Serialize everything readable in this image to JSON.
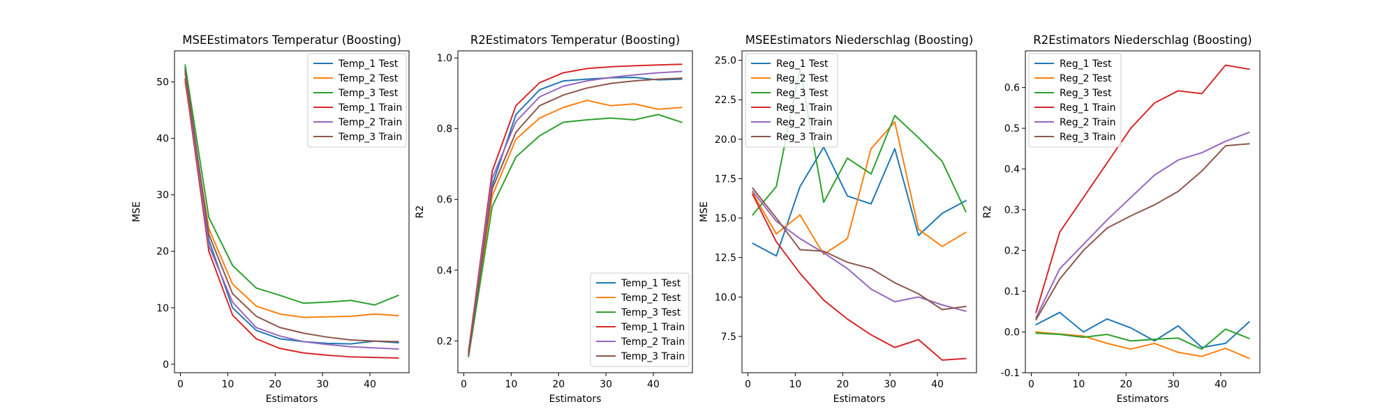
{
  "chart_data": [
    {
      "type": "line",
      "title": "MSEEstimators Temperatur (Boosting)",
      "xlabel": "Estimators",
      "ylabel": "MSE",
      "xlim": [
        -1.25,
        48.25
      ],
      "ylim": [
        -1.5,
        55.5
      ],
      "xticks": [
        0,
        10,
        20,
        30,
        40
      ],
      "yticks": [
        0,
        10,
        20,
        30,
        40,
        50
      ],
      "legend_position": "upper right",
      "x": [
        1,
        6,
        11,
        16,
        21,
        26,
        31,
        36,
        41,
        46
      ],
      "series": [
        {
          "name": "Temp_1 Test",
          "color": "#1f77b4",
          "values": [
            52.5,
            22.0,
            10.0,
            6.0,
            4.5,
            4.0,
            3.7,
            3.6,
            4.1,
            3.8
          ]
        },
        {
          "name": "Temp_2 Test",
          "color": "#ff7f0e",
          "values": [
            50.0,
            24.0,
            14.2,
            10.3,
            8.9,
            8.3,
            8.4,
            8.5,
            8.9,
            8.6
          ]
        },
        {
          "name": "Temp_3 Test",
          "color": "#2ca02c",
          "values": [
            53.0,
            26.0,
            17.5,
            13.5,
            12.2,
            10.8,
            11.0,
            11.3,
            10.5,
            12.2
          ]
        },
        {
          "name": "Temp_1 Train",
          "color": "#d62728",
          "values": [
            50.5,
            20.0,
            8.7,
            4.5,
            2.8,
            2.0,
            1.6,
            1.3,
            1.2,
            1.1
          ]
        },
        {
          "name": "Temp_2 Train",
          "color": "#9467bd",
          "values": [
            51.5,
            21.0,
            11.0,
            6.5,
            5.0,
            4.0,
            3.5,
            3.1,
            2.9,
            2.7
          ]
        },
        {
          "name": "Temp_3 Train",
          "color": "#8c564b",
          "values": [
            52.0,
            23.0,
            12.5,
            8.5,
            6.5,
            5.5,
            4.8,
            4.3,
            4.1,
            4.0
          ]
        }
      ]
    },
    {
      "type": "line",
      "title": "R2Estimators Temperatur (Boosting)",
      "xlabel": "Estimators",
      "ylabel": "R2",
      "xlim": [
        -1.25,
        48.25
      ],
      "ylim": [
        0.11,
        1.02
      ],
      "xticks": [
        0,
        10,
        20,
        30,
        40
      ],
      "yticks": [
        0.2,
        0.4,
        0.6,
        0.8,
        1.0
      ],
      "legend_position": "lower right",
      "x": [
        1,
        6,
        11,
        16,
        21,
        26,
        31,
        36,
        41,
        46
      ],
      "series": [
        {
          "name": "Temp_1 Test",
          "color": "#1f77b4",
          "values": [
            0.16,
            0.64,
            0.84,
            0.91,
            0.935,
            0.94,
            0.944,
            0.945,
            0.938,
            0.94
          ]
        },
        {
          "name": "Temp_2 Test",
          "color": "#ff7f0e",
          "values": [
            0.17,
            0.61,
            0.77,
            0.83,
            0.86,
            0.88,
            0.865,
            0.87,
            0.855,
            0.86
          ]
        },
        {
          "name": "Temp_3 Test",
          "color": "#2ca02c",
          "values": [
            0.155,
            0.58,
            0.72,
            0.78,
            0.818,
            0.825,
            0.83,
            0.825,
            0.84,
            0.818
          ]
        },
        {
          "name": "Temp_1 Train",
          "color": "#d62728",
          "values": [
            0.17,
            0.68,
            0.865,
            0.93,
            0.958,
            0.97,
            0.975,
            0.978,
            0.98,
            0.982
          ]
        },
        {
          "name": "Temp_2 Train",
          "color": "#9467bd",
          "values": [
            0.165,
            0.66,
            0.82,
            0.89,
            0.92,
            0.935,
            0.945,
            0.952,
            0.958,
            0.962
          ]
        },
        {
          "name": "Temp_3 Train",
          "color": "#8c564b",
          "values": [
            0.16,
            0.63,
            0.79,
            0.865,
            0.895,
            0.915,
            0.928,
            0.935,
            0.94,
            0.943
          ]
        }
      ]
    },
    {
      "type": "line",
      "title": "MSEEstimators Niederschlag (Boosting)",
      "xlabel": "Estimators",
      "ylabel": "MSE",
      "xlim": [
        -1.25,
        48.25
      ],
      "ylim": [
        5.2,
        25.6
      ],
      "xticks": [
        0,
        10,
        20,
        30,
        40
      ],
      "yticks": [
        7.5,
        10.0,
        12.5,
        15.0,
        17.5,
        20.0,
        22.5,
        25.0
      ],
      "legend_position": "upper left",
      "x": [
        1,
        6,
        11,
        16,
        21,
        26,
        31,
        36,
        41,
        46
      ],
      "series": [
        {
          "name": "Reg_1 Test",
          "color": "#1f77b4",
          "values": [
            13.4,
            12.6,
            17.0,
            19.5,
            16.4,
            15.9,
            19.4,
            13.9,
            15.3,
            16.1
          ]
        },
        {
          "name": "Reg_2 Test",
          "color": "#ff7f0e",
          "values": [
            16.6,
            14.0,
            15.2,
            12.7,
            13.7,
            19.4,
            21.1,
            14.3,
            13.2,
            14.1
          ]
        },
        {
          "name": "Reg_3 Test",
          "color": "#2ca02c",
          "values": [
            15.2,
            17.0,
            24.5,
            16.0,
            18.8,
            17.8,
            21.5,
            20.1,
            18.6,
            15.4
          ]
        },
        {
          "name": "Reg_1 Train",
          "color": "#d62728",
          "values": [
            16.5,
            13.5,
            11.5,
            9.8,
            8.6,
            7.6,
            6.8,
            7.3,
            6.0,
            6.1
          ]
        },
        {
          "name": "Reg_2 Train",
          "color": "#9467bd",
          "values": [
            16.7,
            14.8,
            13.7,
            12.8,
            11.8,
            10.5,
            9.7,
            10.0,
            9.5,
            9.1
          ]
        },
        {
          "name": "Reg_3 Train",
          "color": "#8c564b",
          "values": [
            16.9,
            15.0,
            13.0,
            12.9,
            12.2,
            11.8,
            10.9,
            10.2,
            9.2,
            9.4
          ]
        }
      ]
    },
    {
      "type": "line",
      "title": "R2Estimators Niederschlag (Boosting)",
      "xlabel": "Estimators",
      "ylabel": "R2",
      "xlim": [
        -1.25,
        48.25
      ],
      "ylim": [
        -0.1,
        0.69
      ],
      "xticks": [
        0,
        10,
        20,
        30,
        40
      ],
      "yticks": [
        -0.1,
        0.0,
        0.1,
        0.2,
        0.3,
        0.4,
        0.5,
        0.6
      ],
      "legend_position": "upper left",
      "x": [
        1,
        6,
        11,
        16,
        21,
        26,
        31,
        36,
        41,
        46
      ],
      "series": [
        {
          "name": "Reg_1 Test",
          "color": "#1f77b4",
          "values": [
            0.018,
            0.048,
            0.0,
            0.032,
            0.01,
            -0.022,
            0.015,
            -0.038,
            -0.028,
            0.025
          ]
        },
        {
          "name": "Reg_2 Test",
          "color": "#ff7f0e",
          "values": [
            0.0,
            -0.005,
            -0.01,
            -0.028,
            -0.042,
            -0.028,
            -0.05,
            -0.06,
            -0.04,
            -0.065
          ]
        },
        {
          "name": "Reg_3 Test",
          "color": "#2ca02c",
          "values": [
            -0.003,
            -0.006,
            -0.013,
            -0.006,
            -0.022,
            -0.018,
            -0.015,
            -0.042,
            0.007,
            -0.016
          ]
        },
        {
          "name": "Reg_1 Train",
          "color": "#d62728",
          "values": [
            0.048,
            0.245,
            0.33,
            0.415,
            0.5,
            0.562,
            0.592,
            0.585,
            0.655,
            0.645
          ]
        },
        {
          "name": "Reg_2 Train",
          "color": "#9467bd",
          "values": [
            0.035,
            0.155,
            0.215,
            0.275,
            0.33,
            0.385,
            0.422,
            0.44,
            0.468,
            0.49
          ]
        },
        {
          "name": "Reg_3 Train",
          "color": "#8c564b",
          "values": [
            0.03,
            0.13,
            0.2,
            0.255,
            0.285,
            0.312,
            0.345,
            0.395,
            0.457,
            0.462
          ]
        }
      ]
    }
  ]
}
